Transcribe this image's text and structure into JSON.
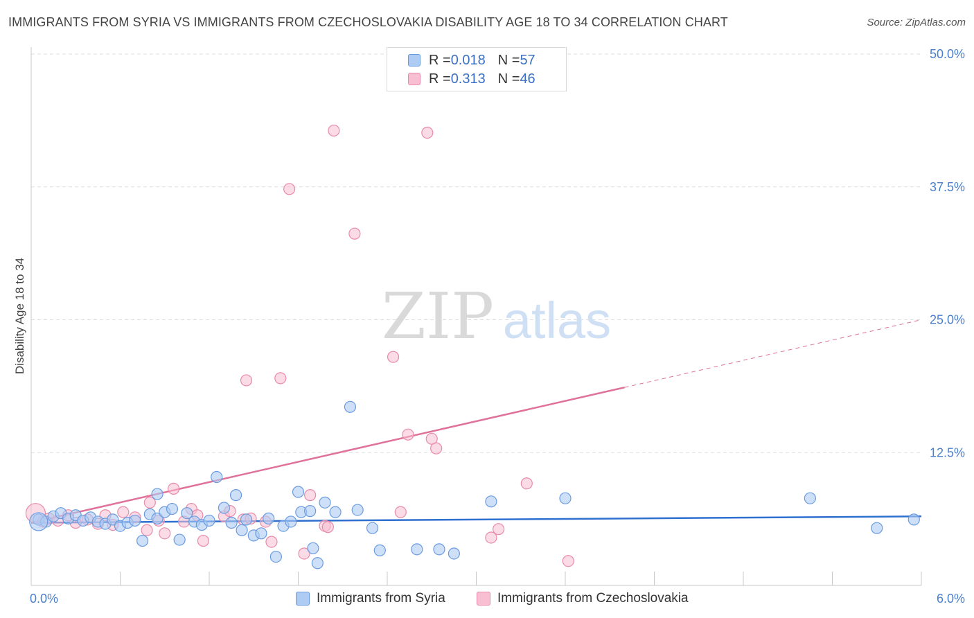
{
  "header": {
    "title": "IMMIGRANTS FROM SYRIA VS IMMIGRANTS FROM CZECHOSLOVAKIA DISABILITY AGE 18 TO 34 CORRELATION CHART",
    "source": "Source: ZipAtlas.com"
  },
  "watermark": {
    "zip": "ZIP",
    "atlas": "atlas"
  },
  "legend": {
    "syria": {
      "r_label": "R = ",
      "r_value": "0.018",
      "n_label": "N = ",
      "n_value": "57"
    },
    "czech": {
      "r_label": "R = ",
      "r_value": "0.313",
      "n_label": "N = ",
      "n_value": "46"
    }
  },
  "colors": {
    "syria_fill": "#aecbf3",
    "syria_stroke": "#6a9be0",
    "syria_line": "#2f6fcf",
    "czech_fill": "#f8bfd2",
    "czech_stroke": "#e98aa9",
    "czech_line": "#e0719a",
    "grid": "#dddddd",
    "axis_text": "#4a7fcc"
  },
  "chart_data": {
    "type": "scatter",
    "title": "IMMIGRANTS FROM SYRIA VS IMMIGRANTS FROM CZECHOSLOVAKIA DISABILITY AGE 18 TO 34 CORRELATION CHART",
    "xlabel": "",
    "ylabel": "Disability Age 18 to 34",
    "xlim": [
      0,
      6
    ],
    "ylim": [
      0,
      50
    ],
    "x_tick_labels": [
      "0.0%",
      "6.0%"
    ],
    "y_ticks": [
      12.5,
      25.0,
      37.5,
      50.0
    ],
    "y_tick_labels": [
      "12.5%",
      "25.0%",
      "37.5%",
      "50.0%"
    ],
    "grid": true,
    "legend_position": "top-center",
    "series": [
      {
        "name": "Immigrants from Syria",
        "r": 0.018,
        "n": 57,
        "trend": {
          "x0": 0.0,
          "y0": 5.9,
          "x1": 6.0,
          "y1": 6.5,
          "dashed_from": null
        },
        "points": [
          [
            0.05,
            6.2
          ],
          [
            0.1,
            6.0
          ],
          [
            0.15,
            6.5
          ],
          [
            0.2,
            6.8
          ],
          [
            0.25,
            6.3
          ],
          [
            0.3,
            6.6
          ],
          [
            0.35,
            6.1
          ],
          [
            0.4,
            6.4
          ],
          [
            0.45,
            6.0
          ],
          [
            0.5,
            5.8
          ],
          [
            0.55,
            6.2
          ],
          [
            0.6,
            5.6
          ],
          [
            0.65,
            5.9
          ],
          [
            0.7,
            6.1
          ],
          [
            0.75,
            4.2
          ],
          [
            0.8,
            6.7
          ],
          [
            0.85,
            6.3
          ],
          [
            0.9,
            6.9
          ],
          [
            0.85,
            8.6
          ],
          [
            0.95,
            7.2
          ],
          [
            1.0,
            4.3
          ],
          [
            1.05,
            6.8
          ],
          [
            1.1,
            6.0
          ],
          [
            1.15,
            5.7
          ],
          [
            1.2,
            6.1
          ],
          [
            1.25,
            10.2
          ],
          [
            1.3,
            7.3
          ],
          [
            1.35,
            5.9
          ],
          [
            1.38,
            8.5
          ],
          [
            1.42,
            5.2
          ],
          [
            1.45,
            6.2
          ],
          [
            1.5,
            4.7
          ],
          [
            1.55,
            4.9
          ],
          [
            1.6,
            6.3
          ],
          [
            1.65,
            2.7
          ],
          [
            1.7,
            5.6
          ],
          [
            1.75,
            6.0
          ],
          [
            1.8,
            8.8
          ],
          [
            1.82,
            6.9
          ],
          [
            1.88,
            7.0
          ],
          [
            1.9,
            3.5
          ],
          [
            1.93,
            2.1
          ],
          [
            1.98,
            7.8
          ],
          [
            2.05,
            6.9
          ],
          [
            2.15,
            16.8
          ],
          [
            2.2,
            7.1
          ],
          [
            2.3,
            5.4
          ],
          [
            2.35,
            3.3
          ],
          [
            2.6,
            3.4
          ],
          [
            2.75,
            3.4
          ],
          [
            2.85,
            3.0
          ],
          [
            3.1,
            7.9
          ],
          [
            3.6,
            8.2
          ],
          [
            5.25,
            8.2
          ],
          [
            5.7,
            5.4
          ],
          [
            5.95,
            6.2
          ],
          [
            0.05,
            6.0
          ]
        ]
      },
      {
        "name": "Immigrants from Czechoslovakia",
        "r": 0.313,
        "n": 46,
        "trend": {
          "x0": 0.0,
          "y0": 5.9,
          "x1": 6.0,
          "y1": 25.0,
          "dashed_from": 4.0
        },
        "points": [
          [
            0.03,
            6.8
          ],
          [
            0.08,
            6.0
          ],
          [
            0.12,
            6.3
          ],
          [
            0.18,
            6.1
          ],
          [
            0.25,
            6.6
          ],
          [
            0.3,
            5.9
          ],
          [
            0.38,
            6.2
          ],
          [
            0.45,
            5.8
          ],
          [
            0.5,
            6.6
          ],
          [
            0.55,
            5.7
          ],
          [
            0.62,
            6.9
          ],
          [
            0.7,
            6.4
          ],
          [
            0.78,
            5.2
          ],
          [
            0.8,
            7.8
          ],
          [
            0.86,
            6.1
          ],
          [
            0.9,
            4.9
          ],
          [
            0.96,
            9.1
          ],
          [
            1.03,
            6.0
          ],
          [
            1.08,
            7.2
          ],
          [
            1.12,
            6.6
          ],
          [
            1.16,
            4.2
          ],
          [
            1.3,
            6.5
          ],
          [
            1.34,
            7.0
          ],
          [
            1.43,
            6.2
          ],
          [
            1.45,
            19.3
          ],
          [
            1.48,
            6.3
          ],
          [
            1.62,
            4.1
          ],
          [
            1.68,
            19.5
          ],
          [
            1.84,
            3.0
          ],
          [
            1.88,
            8.5
          ],
          [
            1.98,
            5.6
          ],
          [
            2.04,
            42.8
          ],
          [
            1.74,
            37.3
          ],
          [
            2.18,
            33.1
          ],
          [
            2.44,
            21.5
          ],
          [
            2.54,
            14.2
          ],
          [
            2.7,
            13.8
          ],
          [
            2.73,
            12.9
          ],
          [
            2.49,
            6.9
          ],
          [
            2.67,
            42.6
          ],
          [
            3.1,
            4.5
          ],
          [
            3.15,
            5.3
          ],
          [
            3.34,
            9.6
          ],
          [
            3.62,
            2.3
          ],
          [
            2.0,
            5.5
          ],
          [
            1.58,
            6.0
          ]
        ]
      }
    ]
  },
  "bottom_legend": {
    "syria_label": "Immigrants from Syria",
    "czech_label": "Immigrants from Czechoslovakia"
  }
}
